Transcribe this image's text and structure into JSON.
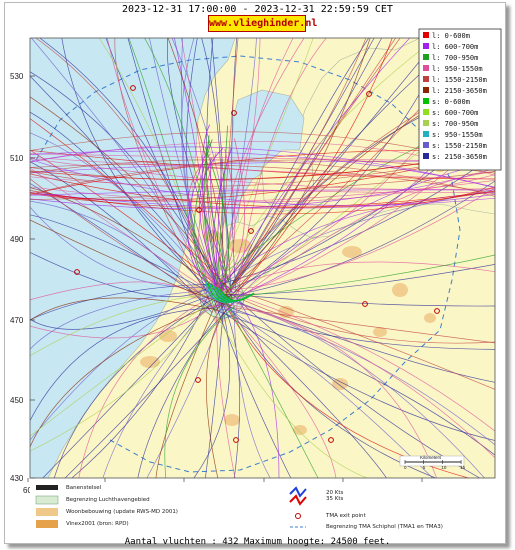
{
  "header": {
    "title": "2023-12-31 17:00:00 - 2023-12-31 22:59:59 CET",
    "brand": "www.vlieghinder.nl"
  },
  "map": {
    "y_ticks": [
      "530",
      "510",
      "490",
      "470",
      "450",
      "430"
    ],
    "x_ticks": [
      "60",
      "80",
      "100",
      "120",
      "140",
      "160"
    ]
  },
  "altitude_legend": [
    {
      "label": "l: 0-600m",
      "color": "#e00000"
    },
    {
      "label": "l: 600-700m",
      "color": "#a020f0"
    },
    {
      "label": "l: 700-950m",
      "color": "#20a020"
    },
    {
      "label": "l: 950-1550m",
      "color": "#e0509a"
    },
    {
      "label": "l: 1550-2150m",
      "color": "#c04040"
    },
    {
      "label": "l: 2150-3650m",
      "color": "#8b2500"
    },
    {
      "label": "s: 0-600m",
      "color": "#00c000"
    },
    {
      "label": "s: 600-700m",
      "color": "#90e020"
    },
    {
      "label": "s: 700-950m",
      "color": "#a8d050"
    },
    {
      "label": "s: 950-1550m",
      "color": "#20b0c0"
    },
    {
      "label": "s: 1550-2150m",
      "color": "#6a5acd"
    },
    {
      "label": "s: 2150-3650m",
      "color": "#2a2a9a"
    }
  ],
  "scale": {
    "label": "Kilometers",
    "ticks": [
      "0",
      "5",
      "10",
      "15"
    ]
  },
  "map_legend": {
    "runways": "Banenstelsel",
    "airport_boundary": "Begrenzing Luchthavengebied",
    "housing": "Woonbebouwing (update RWS-MD 2001)",
    "vinex": "Vinex2001 (bron: RPD)",
    "wind": "20 Kts\n35 Kts",
    "exit_point": "TMA exit point",
    "tma_boundary": "Begrenzing TMA Schiphol  (TMA1 en TMA3)"
  },
  "footer": "Aantal vluchten : 432 Maximum hoogte: 24500 feet."
}
